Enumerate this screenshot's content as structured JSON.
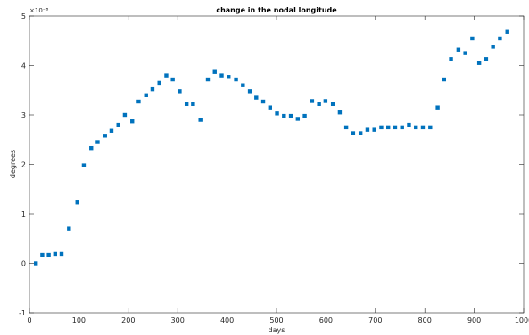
{
  "chart_data": {
    "type": "scatter",
    "title": "change in the nodal longitude",
    "xlabel": "days",
    "ylabel": "degrees",
    "y_exponent_label": "×10⁻⁸",
    "xlim": [
      0,
      1000
    ],
    "ylim": [
      -1,
      5
    ],
    "x_ticks": [
      0,
      100,
      200,
      300,
      400,
      500,
      600,
      700,
      800,
      900,
      1000
    ],
    "y_ticks": [
      -1,
      0,
      1,
      2,
      3,
      4,
      5
    ],
    "grid": false,
    "marker_color": "#0072bd",
    "points": [
      [
        13,
        0.0
      ],
      [
        26,
        0.17
      ],
      [
        39,
        0.17
      ],
      [
        52,
        0.19
      ],
      [
        65,
        0.19
      ],
      [
        80,
        0.7
      ],
      [
        97,
        1.23
      ],
      [
        110,
        1.98
      ],
      [
        125,
        2.33
      ],
      [
        138,
        2.45
      ],
      [
        153,
        2.58
      ],
      [
        166,
        2.68
      ],
      [
        180,
        2.8
      ],
      [
        193,
        3.0
      ],
      [
        208,
        2.87
      ],
      [
        221,
        3.27
      ],
      [
        236,
        3.4
      ],
      [
        249,
        3.52
      ],
      [
        263,
        3.65
      ],
      [
        277,
        3.8
      ],
      [
        290,
        3.72
      ],
      [
        304,
        3.48
      ],
      [
        318,
        3.22
      ],
      [
        331,
        3.22
      ],
      [
        346,
        2.9
      ],
      [
        361,
        3.72
      ],
      [
        375,
        3.87
      ],
      [
        389,
        3.8
      ],
      [
        403,
        3.77
      ],
      [
        418,
        3.72
      ],
      [
        432,
        3.6
      ],
      [
        446,
        3.48
      ],
      [
        459,
        3.35
      ],
      [
        473,
        3.27
      ],
      [
        487,
        3.15
      ],
      [
        501,
        3.03
      ],
      [
        515,
        2.98
      ],
      [
        529,
        2.98
      ],
      [
        543,
        2.92
      ],
      [
        557,
        2.98
      ],
      [
        572,
        3.28
      ],
      [
        586,
        3.22
      ],
      [
        599,
        3.28
      ],
      [
        614,
        3.22
      ],
      [
        628,
        3.05
      ],
      [
        641,
        2.75
      ],
      [
        655,
        2.63
      ],
      [
        670,
        2.63
      ],
      [
        684,
        2.7
      ],
      [
        698,
        2.7
      ],
      [
        712,
        2.75
      ],
      [
        726,
        2.75
      ],
      [
        740,
        2.75
      ],
      [
        754,
        2.75
      ],
      [
        768,
        2.8
      ],
      [
        782,
        2.75
      ],
      [
        796,
        2.75
      ],
      [
        811,
        2.75
      ],
      [
        826,
        3.15
      ],
      [
        839,
        3.72
      ],
      [
        853,
        4.13
      ],
      [
        868,
        4.32
      ],
      [
        882,
        4.25
      ],
      [
        896,
        4.55
      ],
      [
        910,
        4.05
      ],
      [
        924,
        4.13
      ],
      [
        938,
        4.38
      ],
      [
        952,
        4.55
      ],
      [
        967,
        4.68
      ]
    ]
  }
}
